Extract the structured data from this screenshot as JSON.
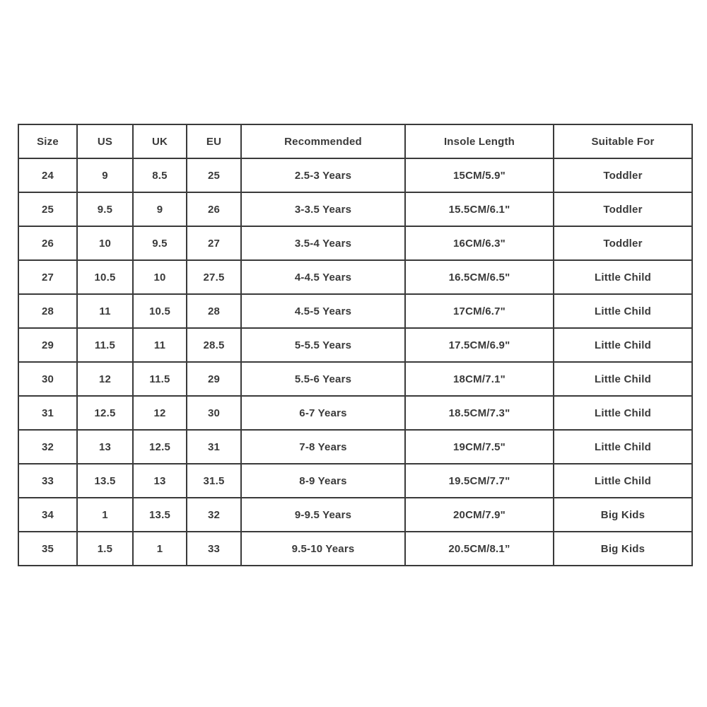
{
  "table": {
    "columns": [
      "Size",
      "US",
      "UK",
      "EU",
      "Recommended",
      "Insole Length",
      "Suitable For"
    ],
    "rows": [
      [
        "24",
        "9",
        "8.5",
        "25",
        "2.5-3 Years",
        "15CM/5.9\"",
        "Toddler"
      ],
      [
        "25",
        "9.5",
        "9",
        "26",
        "3-3.5 Years",
        "15.5CM/6.1\"",
        "Toddler"
      ],
      [
        "26",
        "10",
        "9.5",
        "27",
        "3.5-4 Years",
        "16CM/6.3\"",
        "Toddler"
      ],
      [
        "27",
        "10.5",
        "10",
        "27.5",
        "4-4.5 Years",
        "16.5CM/6.5\"",
        "Little Child"
      ],
      [
        "28",
        "11",
        "10.5",
        "28",
        "4.5-5 Years",
        "17CM/6.7\"",
        "Little Child"
      ],
      [
        "29",
        "11.5",
        "11",
        "28.5",
        "5-5.5 Years",
        "17.5CM/6.9\"",
        "Little Child"
      ],
      [
        "30",
        "12",
        "11.5",
        "29",
        "5.5-6 Years",
        "18CM/7.1\"",
        "Little Child"
      ],
      [
        "31",
        "12.5",
        "12",
        "30",
        "6-7 Years",
        "18.5CM/7.3\"",
        "Little Child"
      ],
      [
        "32",
        "13",
        "12.5",
        "31",
        "7-8 Years",
        "19CM/7.5\"",
        "Little Child"
      ],
      [
        "33",
        "13.5",
        "13",
        "31.5",
        "8-9 Years",
        "19.5CM/7.7\"",
        "Little Child"
      ],
      [
        "34",
        "1",
        "13.5",
        "32",
        "9-9.5 Years",
        "20CM/7.9\"",
        "Big Kids"
      ],
      [
        "35",
        "1.5",
        "1",
        "33",
        "9.5-10 Years",
        "20.5CM/8.1”",
        "Big Kids"
      ]
    ],
    "border_color": "#3a3a3a",
    "text_color": "#3a3a3a",
    "background_color": "#ffffff"
  }
}
